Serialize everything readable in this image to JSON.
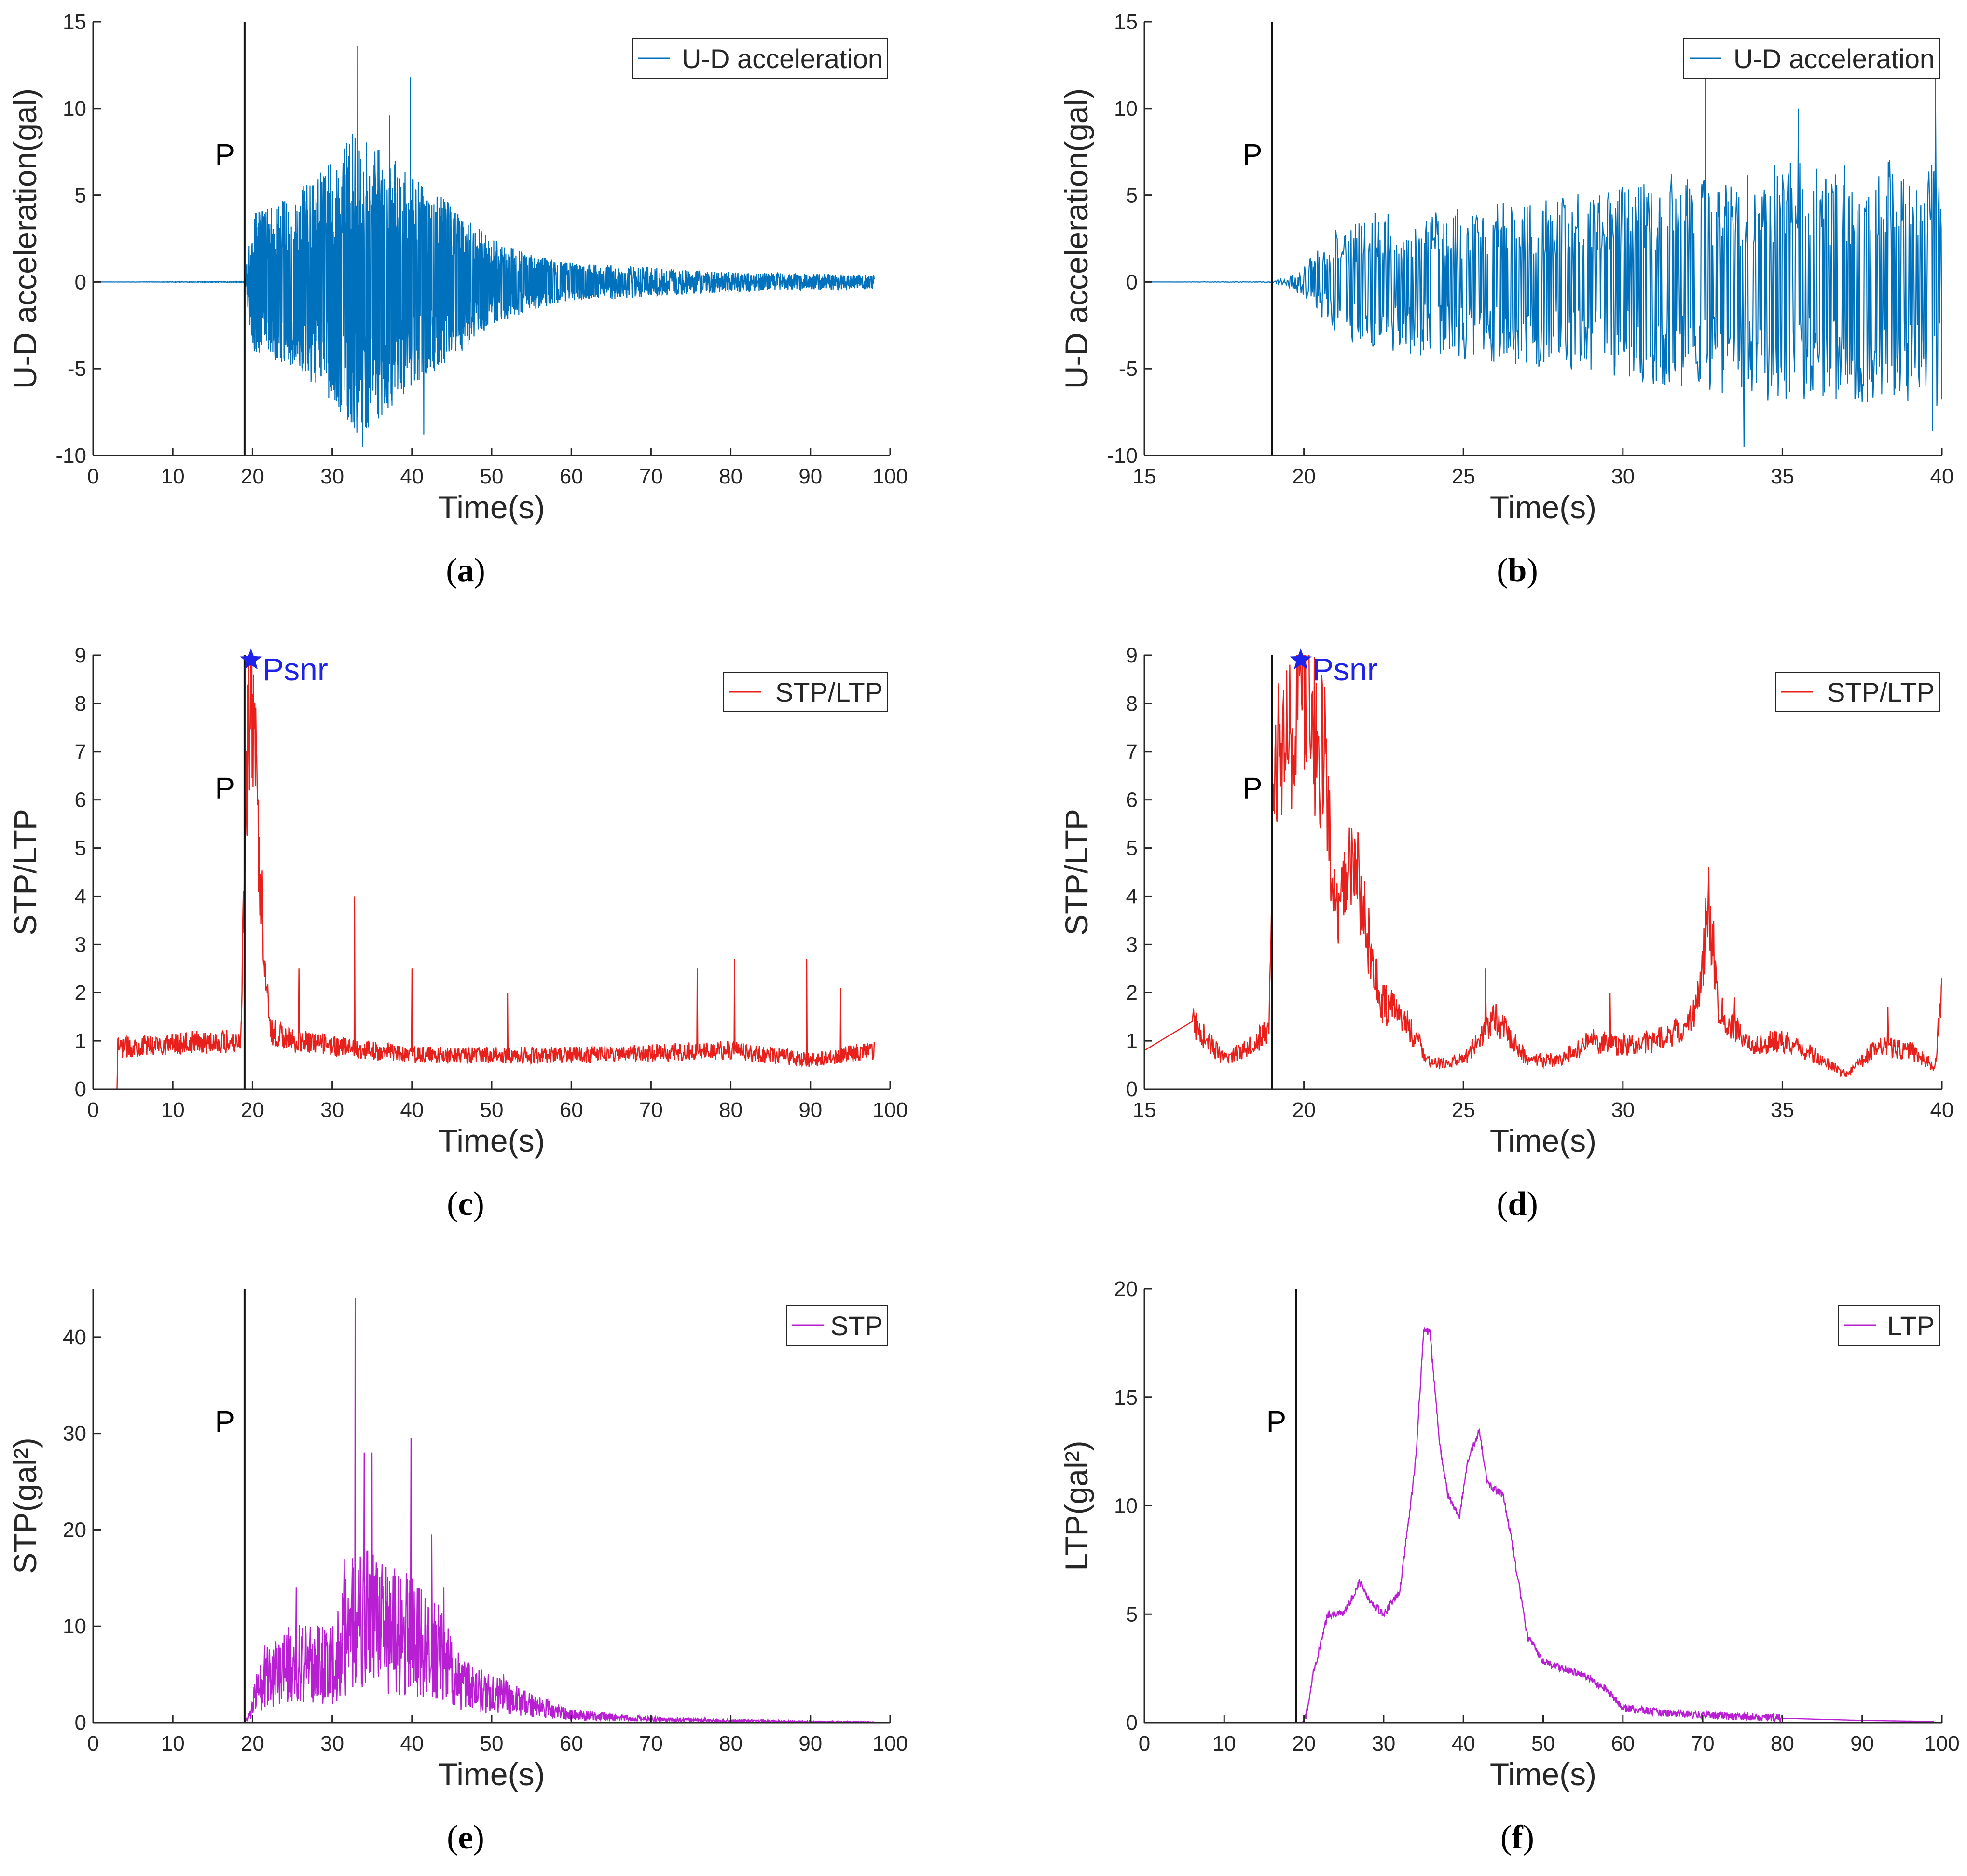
{
  "figure": {
    "captions": [
      "(a)",
      "(b)",
      "(c)",
      "(d)",
      "(e)",
      "(f)"
    ]
  },
  "colors": {
    "acceleration": "#0072BD",
    "ratio": "#E8201C",
    "power": "#B81FD2",
    "marker": "#1F22E8",
    "axis": "#262626",
    "pline": "#111111"
  },
  "chart_data": [
    {
      "id": "a",
      "type": "line",
      "caption": "(a)",
      "xlabel": "Time(s)",
      "ylabel": "U-D acceleration(gal)",
      "xlim": [
        0,
        100
      ],
      "ylim": [
        -10,
        15
      ],
      "xticks": [
        0,
        10,
        20,
        30,
        40,
        50,
        60,
        70,
        80,
        90,
        100
      ],
      "yticks": [
        -10,
        -5,
        0,
        5,
        10,
        15
      ],
      "grid": false,
      "legend": "top-right",
      "series": [
        {
          "name": "U-D acceleration",
          "color_key": "acceleration",
          "signal": "acceleration",
          "x_range": [
            0,
            98
          ],
          "samples": 3000
        }
      ],
      "p_arrival": 19,
      "p_label": "P",
      "envelope": [
        [
          0,
          0
        ],
        [
          19,
          0.02
        ],
        [
          20,
          4
        ],
        [
          25,
          5
        ],
        [
          30,
          7
        ],
        [
          33,
          9
        ],
        [
          36,
          8
        ],
        [
          40,
          6
        ],
        [
          45,
          4.5
        ],
        [
          50,
          2.5
        ],
        [
          55,
          1.6
        ],
        [
          60,
          1.1
        ],
        [
          70,
          0.8
        ],
        [
          80,
          0.55
        ],
        [
          90,
          0.45
        ],
        [
          98,
          0.4
        ]
      ],
      "peaks": [
        [
          33.2,
          13.6
        ],
        [
          33.8,
          -9.5
        ],
        [
          39.8,
          11.8
        ],
        [
          41.5,
          -8.8
        ],
        [
          37.2,
          9.6
        ]
      ]
    },
    {
      "id": "b",
      "type": "line",
      "caption": "(b)",
      "xlabel": "Time(s)",
      "ylabel": "U-D acceleration(gal)",
      "xlim": [
        15,
        40
      ],
      "ylim": [
        -10,
        15
      ],
      "xticks": [
        15,
        20,
        25,
        30,
        35,
        40
      ],
      "yticks": [
        -10,
        -5,
        0,
        5,
        10,
        15
      ],
      "grid": false,
      "legend": "top-right",
      "series": [
        {
          "name": "U-D acceleration",
          "color_key": "acceleration",
          "signal": "acceleration",
          "x_range": [
            15,
            40
          ],
          "samples": 1100
        }
      ],
      "p_arrival": 19,
      "p_label": "P",
      "envelope": [
        [
          15,
          0
        ],
        [
          19,
          0.02
        ],
        [
          19.5,
          0.3
        ],
        [
          20,
          1.0
        ],
        [
          21,
          3
        ],
        [
          22,
          4
        ],
        [
          25,
          4.5
        ],
        [
          28,
          5
        ],
        [
          30,
          5.5
        ],
        [
          32,
          6.5
        ],
        [
          35,
          7
        ],
        [
          38,
          7
        ],
        [
          40,
          7.5
        ]
      ],
      "peaks": [
        [
          32.6,
          12
        ],
        [
          33.8,
          -9.5
        ],
        [
          39.8,
          11.8
        ],
        [
          39.7,
          -8.6
        ],
        [
          35.5,
          10
        ]
      ]
    },
    {
      "id": "c",
      "type": "line",
      "caption": "(c)",
      "xlabel": "Time(s)",
      "ylabel": "STP/LTP",
      "xlim": [
        0,
        100
      ],
      "ylim": [
        0,
        9
      ],
      "xticks": [
        0,
        10,
        20,
        30,
        40,
        50,
        60,
        70,
        80,
        90,
        100
      ],
      "yticks": [
        0,
        1,
        2,
        3,
        4,
        5,
        6,
        7,
        8,
        9
      ],
      "grid": false,
      "legend": "top-right",
      "series": [
        {
          "name": "STP/LTP",
          "color_key": "ratio",
          "signal": "ratio",
          "x_range": [
            0,
            98
          ],
          "samples": 1700
        }
      ],
      "p_arrival": 19,
      "p_label": "P",
      "marker": {
        "x": 19.8,
        "y": 8.9,
        "label": "Psnr"
      },
      "anchors": [
        [
          0,
          0
        ],
        [
          3,
          0
        ],
        [
          3.1,
          0.85
        ],
        [
          10,
          0.95
        ],
        [
          18.5,
          1.0
        ],
        [
          19,
          4.8
        ],
        [
          19.4,
          7.0
        ],
        [
          19.8,
          8.9
        ],
        [
          20.2,
          7.5
        ],
        [
          20.8,
          5.0
        ],
        [
          21.5,
          2.9
        ],
        [
          22.3,
          1.2
        ],
        [
          25,
          1.0
        ],
        [
          40,
          0.7
        ],
        [
          60,
          0.7
        ],
        [
          80,
          0.8
        ],
        [
          90,
          0.6
        ],
        [
          98,
          0.8
        ]
      ],
      "spikes": [
        [
          25.8,
          2.5
        ],
        [
          32.8,
          4.0
        ],
        [
          40,
          2.5
        ],
        [
          52,
          2.0
        ],
        [
          75.8,
          2.5
        ],
        [
          80.5,
          2.7
        ],
        [
          89.5,
          2.7
        ],
        [
          93.8,
          2.1
        ]
      ]
    },
    {
      "id": "d",
      "type": "line",
      "caption": "(d)",
      "xlabel": "Time(s)",
      "ylabel": "STP/LTP",
      "xlim": [
        15,
        40
      ],
      "ylim": [
        0,
        9
      ],
      "xticks": [
        15,
        20,
        25,
        30,
        35,
        40
      ],
      "yticks": [
        0,
        1,
        2,
        3,
        4,
        5,
        6,
        7,
        8,
        9
      ],
      "grid": false,
      "legend": "top-right",
      "series": [
        {
          "name": "STP/LTP",
          "color_key": "ratio",
          "signal": "ratio",
          "x_range": [
            15,
            40
          ],
          "samples": 1300
        }
      ],
      "p_arrival": 19,
      "p_label": "P",
      "marker": {
        "x": 19.9,
        "y": 8.9,
        "label": "Psnr"
      },
      "anchors": [
        [
          15,
          0.8
        ],
        [
          16.5,
          1.4
        ],
        [
          17.5,
          0.6
        ],
        [
          18.5,
          1.0
        ],
        [
          18.9,
          1.2
        ],
        [
          19.0,
          4.6
        ],
        [
          19.2,
          7.5
        ],
        [
          19.5,
          7.0
        ],
        [
          19.9,
          8.9
        ],
        [
          20.3,
          7.5
        ],
        [
          20.7,
          6.6
        ],
        [
          21.0,
          3.3
        ],
        [
          21.5,
          5.0
        ],
        [
          21.9,
          3.5
        ],
        [
          22.4,
          1.8
        ],
        [
          23,
          1.6
        ],
        [
          24,
          0.5
        ],
        [
          25,
          0.6
        ],
        [
          26,
          1.5
        ],
        [
          27,
          0.6
        ],
        [
          28,
          0.6
        ],
        [
          29,
          1.0
        ],
        [
          30,
          0.9
        ],
        [
          31,
          1.0
        ],
        [
          32,
          1.3
        ],
        [
          32.4,
          1.9
        ],
        [
          32.7,
          3.95
        ],
        [
          33,
          1.6
        ],
        [
          34,
          0.9
        ],
        [
          35,
          1.0
        ],
        [
          36,
          0.7
        ],
        [
          37,
          0.3
        ],
        [
          38,
          0.9
        ],
        [
          39,
          0.8
        ],
        [
          39.8,
          0.45
        ],
        [
          40,
          2.2
        ]
      ],
      "spikes": [
        [
          25.7,
          2.5
        ],
        [
          29.6,
          2.0
        ],
        [
          33.5,
          1.9
        ],
        [
          38.3,
          1.7
        ]
      ]
    },
    {
      "id": "e",
      "type": "line",
      "caption": "(e)",
      "xlabel": "Time(s)",
      "ylabel": "STP(gal²)",
      "xlim": [
        0,
        100
      ],
      "ylim": [
        0,
        45
      ],
      "xticks": [
        0,
        10,
        20,
        30,
        40,
        50,
        60,
        70,
        80,
        90,
        100
      ],
      "yticks": [
        0,
        10,
        20,
        30,
        40
      ],
      "grid": false,
      "legend": "top-right",
      "series": [
        {
          "name": "STP",
          "color_key": "power",
          "signal": "stp",
          "x_range": [
            0,
            98
          ],
          "samples": 2000
        }
      ],
      "p_arrival": 19,
      "p_label": "P",
      "anchors": [
        [
          0,
          0
        ],
        [
          19,
          0
        ],
        [
          19.5,
          0.5
        ],
        [
          20.5,
          3
        ],
        [
          22,
          5
        ],
        [
          25,
          6
        ],
        [
          30,
          6
        ],
        [
          33,
          11
        ],
        [
          36,
          10
        ],
        [
          40,
          9
        ],
        [
          44,
          7
        ],
        [
          46,
          4
        ],
        [
          50,
          3
        ],
        [
          55,
          1.8
        ],
        [
          60,
          0.8
        ],
        [
          70,
          0.35
        ],
        [
          80,
          0.2
        ],
        [
          90,
          0.1
        ],
        [
          98,
          0.05
        ]
      ],
      "spikes": [
        [
          21.5,
          8
        ],
        [
          25.5,
          14
        ],
        [
          31.5,
          17
        ],
        [
          32.9,
          44
        ],
        [
          34,
          28
        ],
        [
          35,
          28
        ],
        [
          39.9,
          29.5
        ],
        [
          42.5,
          19.5
        ],
        [
          44,
          14
        ],
        [
          48,
          5
        ],
        [
          51.5,
          5
        ]
      ]
    },
    {
      "id": "f",
      "type": "line",
      "caption": "(f)",
      "xlabel": "Time(s)",
      "ylabel": "LTP(gal²)",
      "xlim": [
        0,
        100
      ],
      "ylim": [
        0,
        20
      ],
      "xticks": [
        0,
        10,
        20,
        30,
        40,
        50,
        60,
        70,
        80,
        90,
        100
      ],
      "yticks": [
        0,
        5,
        10,
        15,
        20
      ],
      "grid": false,
      "legend": "top-right",
      "series": [
        {
          "name": "LTP",
          "color_key": "power",
          "signal": "ltp",
          "x_range": [
            0,
            99
          ],
          "samples": 1800
        }
      ],
      "p_arrival": 19,
      "p_label": "P",
      "anchors": [
        [
          0,
          0
        ],
        [
          19.8,
          0
        ],
        [
          20.3,
          0.3
        ],
        [
          21,
          2
        ],
        [
          23,
          5
        ],
        [
          25,
          5
        ],
        [
          27,
          6.5
        ],
        [
          28.5,
          5.5
        ],
        [
          30,
          5
        ],
        [
          32,
          6
        ],
        [
          34,
          12
        ],
        [
          35,
          18
        ],
        [
          35.8,
          18
        ],
        [
          37,
          13
        ],
        [
          38,
          10.5
        ],
        [
          39.5,
          9.5
        ],
        [
          40.5,
          12
        ],
        [
          42,
          13.5
        ],
        [
          43,
          11
        ],
        [
          45,
          10.5
        ],
        [
          46,
          8.5
        ],
        [
          48,
          4
        ],
        [
          50,
          2.8
        ],
        [
          55,
          2.2
        ],
        [
          58,
          1.5
        ],
        [
          60,
          0.7
        ],
        [
          65,
          0.45
        ],
        [
          70,
          0.35
        ],
        [
          80,
          0.2
        ],
        [
          90,
          0.1
        ],
        [
          99,
          0.05
        ]
      ]
    }
  ]
}
